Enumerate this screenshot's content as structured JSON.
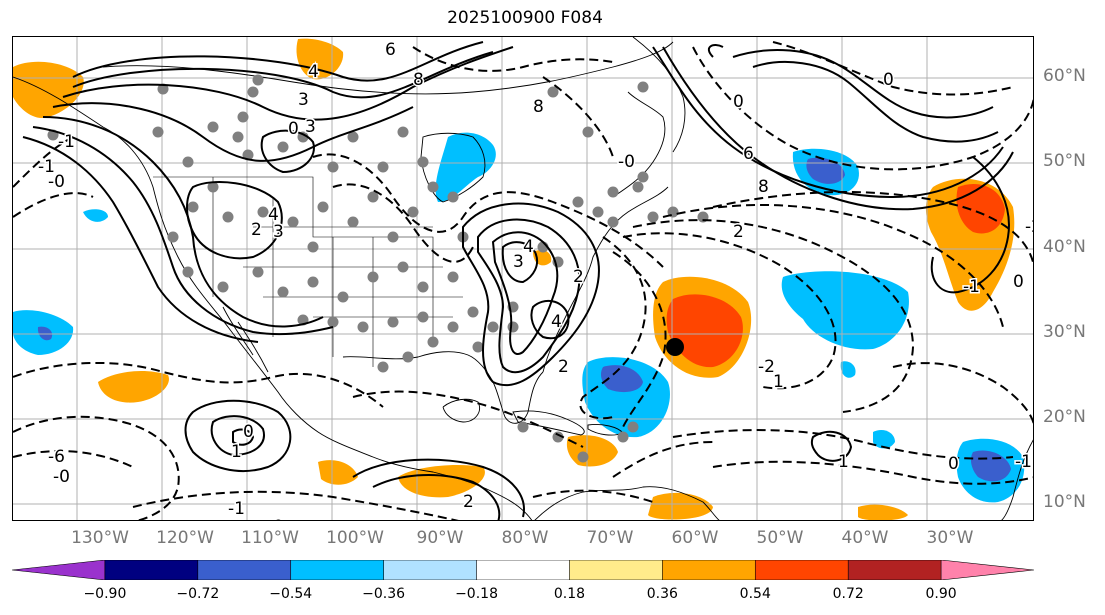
{
  "title": "2025100900 F084",
  "latitude_labels": [
    {
      "lat": 60,
      "label": "60°N"
    },
    {
      "lat": 50,
      "label": "50°N"
    },
    {
      "lat": 40,
      "label": "40°N"
    },
    {
      "lat": 30,
      "label": "30°N"
    },
    {
      "lat": 20,
      "label": "20°N"
    },
    {
      "lat": 10,
      "label": "10°N"
    }
  ],
  "longitude_labels": [
    {
      "lon": -130,
      "label": "130°W"
    },
    {
      "lon": -120,
      "label": "120°W"
    },
    {
      "lon": -110,
      "label": "110°W"
    },
    {
      "lon": -100,
      "label": "100°W"
    },
    {
      "lon": -90,
      "label": "90°W"
    },
    {
      "lon": -80,
      "label": "80°W"
    },
    {
      "lon": -70,
      "label": "70°W"
    },
    {
      "lon": -60,
      "label": "60°W"
    },
    {
      "lon": -50,
      "label": "50°W"
    },
    {
      "lon": -40,
      "label": "40°W"
    },
    {
      "lon": -30,
      "label": "30°W"
    }
  ],
  "colorbar": {
    "ticks": [
      "−0.90",
      "−0.72",
      "−0.54",
      "−0.36",
      "−0.18",
      "0.18",
      "0.36",
      "0.54",
      "0.72",
      "0.90"
    ],
    "colors": [
      "#9a32cd",
      "#000080",
      "#3a5fcd",
      "#00bfff",
      "#b0e2ff",
      "#ffffff",
      "#ffec8b",
      "#ffa500",
      "#ff4500",
      "#b22222",
      "#ff82ab"
    ]
  },
  "contour_labels": [
    "6",
    "8",
    "4",
    "3",
    "0",
    "3",
    "4",
    "3",
    "2",
    "1",
    "0",
    "-1",
    "-0",
    "-1",
    "4",
    "3",
    "2",
    "4",
    "2",
    "6",
    "8",
    "0",
    "2",
    "-2",
    "-2",
    "-1",
    "1",
    "0",
    "-1",
    "0",
    "-0",
    "-6",
    "8",
    "0",
    "-0",
    "1",
    "-1",
    "0",
    "2"
  ],
  "colors": {
    "map_background": "#ffffff",
    "grid": "#b0b0b0",
    "coast": "#000000",
    "dots": "#808080"
  }
}
